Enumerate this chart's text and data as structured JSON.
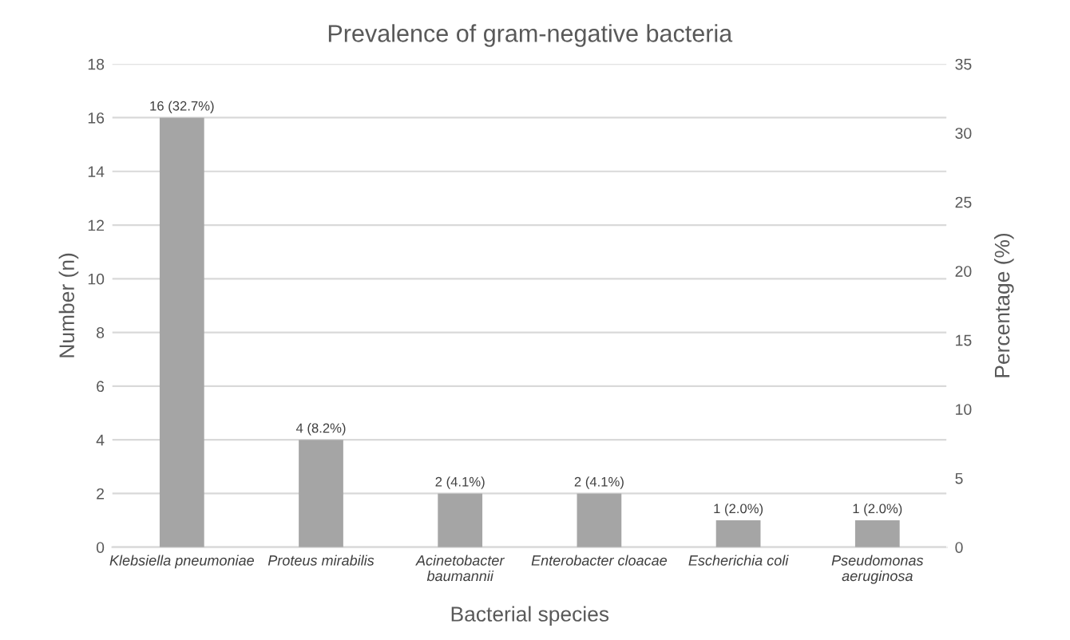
{
  "chart_data": {
    "type": "bar",
    "title": "Prevalence of gram-negative bacteria",
    "xlabel": "Bacterial species",
    "ylabel": "Number (n)",
    "y2label": "Percentage (%)",
    "categories": [
      "Klebsiella pneumoniae",
      "Proteus mirabilis",
      "Acinetobacter baumannii",
      "Enterobacter cloacae",
      "Escherichia coli",
      "Pseudomonas aeruginosa"
    ],
    "values": [
      16,
      4,
      2,
      2,
      1,
      1
    ],
    "value_labels": [
      "16 (32.7%)",
      "4 (8.2%)",
      "2 (4.1%)",
      "2 (4.1%)",
      "1 (2.0%)",
      "1 (2.0%)"
    ],
    "color": "#a5a5a5",
    "ylim": [
      0,
      18
    ],
    "yticks": [
      0,
      2,
      4,
      6,
      8,
      10,
      12,
      14,
      16,
      18
    ],
    "y2lim": [
      0,
      35
    ],
    "y2ticks": [
      0,
      5,
      10,
      15,
      20,
      25,
      30,
      35
    ],
    "grid": "y"
  }
}
